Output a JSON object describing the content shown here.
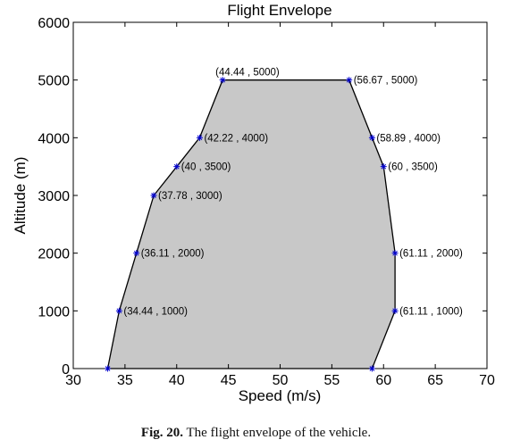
{
  "chart_data": {
    "type": "area",
    "title": "Flight Envelope",
    "xlabel": "Speed (m/s)",
    "ylabel": "Altitude (m)",
    "xlim": [
      30,
      70
    ],
    "ylim": [
      0,
      6000
    ],
    "xticks": [
      30,
      35,
      40,
      45,
      50,
      55,
      60,
      65,
      70
    ],
    "yticks": [
      0,
      1000,
      2000,
      3000,
      4000,
      5000,
      6000
    ],
    "grid": false,
    "fill_color": "#c8c8c8",
    "line_color": "#000000",
    "marker_color": "#0000cc",
    "points": [
      {
        "x": 33.33,
        "y": 0,
        "label": ""
      },
      {
        "x": 34.44,
        "y": 1000,
        "label": "(34.44 , 1000)"
      },
      {
        "x": 36.11,
        "y": 2000,
        "label": "(36.11 , 2000)"
      },
      {
        "x": 37.78,
        "y": 3000,
        "label": "(37.78 , 3000)"
      },
      {
        "x": 40,
        "y": 3500,
        "label": "(40 , 3500)"
      },
      {
        "x": 42.22,
        "y": 4000,
        "label": "(42.22 , 4000)"
      },
      {
        "x": 44.44,
        "y": 5000,
        "label": "(44.44 , 5000)"
      },
      {
        "x": 56.67,
        "y": 5000,
        "label": "(56.67 , 5000)"
      },
      {
        "x": 58.89,
        "y": 4000,
        "label": "(58.89 , 4000)"
      },
      {
        "x": 60,
        "y": 3500,
        "label": "(60 , 3500)"
      },
      {
        "x": 61.11,
        "y": 2000,
        "label": "(61.11 , 2000)"
      },
      {
        "x": 61.11,
        "y": 1000,
        "label": "(61.11 , 1000)"
      },
      {
        "x": 58.89,
        "y": 0,
        "label": ""
      }
    ]
  },
  "caption": {
    "fig": "Fig. 20.",
    "text": "The flight envelope of the vehicle."
  }
}
